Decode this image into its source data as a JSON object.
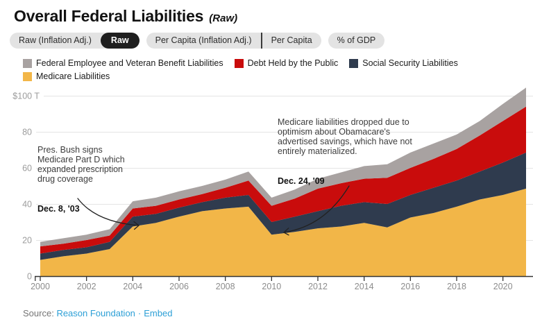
{
  "header": {
    "title": "Overall Federal Liabilities",
    "subtitle": "(Raw)"
  },
  "tabs": {
    "groups": [
      {
        "items": [
          {
            "label": "Raw (Inflation Adj.)",
            "active": false
          },
          {
            "label": "Raw",
            "active": true
          }
        ]
      },
      {
        "items": [
          {
            "label": "Per Capita (Inflation Adj.)",
            "active": false
          },
          {
            "label": "Per Capita",
            "active": false
          }
        ]
      },
      {
        "items": [
          {
            "label": "% of GDP",
            "active": false
          }
        ]
      }
    ]
  },
  "legend": {
    "items": [
      {
        "label": "Federal Employee and Veteran Benefit Liabilities",
        "color": "#A8A2A1"
      },
      {
        "label": "Debt Held by the Public",
        "color": "#C90C0C"
      },
      {
        "label": "Social Security Liabilities",
        "color": "#2F3B4E"
      },
      {
        "label": "Medicare Liabilities",
        "color": "#F2B648"
      }
    ]
  },
  "annotations": [
    {
      "text": "Pres. Bush signs\nMedicare Part D which\nexpanded prescription\ndrug coverage",
      "date": "Dec. 8, '03"
    },
    {
      "text": "Medicare liabilities dropped due to\noptimism about Obamacare's\nadvertised savings, which have not\nentirely materialized.",
      "date": "Dec. 24, '09"
    }
  ],
  "source": {
    "label": "Source:",
    "link1": "Reason Foundation",
    "separator": "·",
    "link2": "Embed"
  },
  "chart_data": {
    "type": "area",
    "stacked": true,
    "title": "Overall Federal Liabilities (Raw)",
    "unit": "trillions of dollars",
    "ylim": [
      0,
      105
    ],
    "grid": true,
    "legend_position": "top-left",
    "years": [
      2000,
      2001,
      2002,
      2003,
      2004,
      2005,
      2006,
      2007,
      2008,
      2009,
      2010,
      2011,
      2012,
      2013,
      2014,
      2015,
      2016,
      2017,
      2018,
      2019,
      2020,
      2021
    ],
    "x_ticks": [
      2000,
      2002,
      2004,
      2006,
      2008,
      2010,
      2012,
      2014,
      2016,
      2018,
      2020
    ],
    "y_ticks": [
      {
        "value": 0,
        "label": "0"
      },
      {
        "value": 20,
        "label": "20"
      },
      {
        "value": 40,
        "label": "40"
      },
      {
        "value": 60,
        "label": "60"
      },
      {
        "value": 80,
        "label": "80"
      },
      {
        "value": 100,
        "label": "$100 T"
      }
    ],
    "series": [
      {
        "id": "medicare",
        "name": "Medicare Liabilities",
        "color": "#F2B648",
        "values": [
          9,
          11,
          12.5,
          15,
          27.5,
          29.5,
          33,
          36,
          37.5,
          38.5,
          23,
          24.5,
          26.5,
          27.5,
          29.5,
          27,
          32.5,
          35,
          38.5,
          42.5,
          45,
          48.5
        ]
      },
      {
        "id": "social-security",
        "name": "Social Security Liabilities",
        "color": "#2F3B4E",
        "values": [
          3.5,
          3.5,
          3.5,
          4,
          5.5,
          5,
          5,
          5,
          6,
          6.5,
          7,
          8.5,
          9.5,
          11.5,
          11.5,
          13,
          12.5,
          14,
          14.5,
          15.5,
          18,
          20
        ]
      },
      {
        "id": "debt-held-by-public",
        "name": "Debt Held by the Public",
        "color": "#C90C0C",
        "values": [
          4,
          3.5,
          4,
          3.5,
          4.5,
          4.5,
          4.5,
          4.5,
          5.5,
          8,
          9,
          10,
          12.5,
          12.5,
          13,
          14.5,
          15,
          16,
          17.5,
          20,
          23,
          25.5
        ]
      },
      {
        "id": "federal-employee-veteran",
        "name": "Federal Employee and Veteran Benefit Liabilities",
        "color": "#A8A2A1",
        "values": [
          2.5,
          3,
          3,
          3.5,
          4,
          4.5,
          4.5,
          4.5,
          4.5,
          5,
          4.5,
          5,
          5.5,
          6,
          7,
          7.5,
          8.5,
          8.5,
          8,
          8,
          9.5,
          10.5
        ]
      }
    ]
  }
}
